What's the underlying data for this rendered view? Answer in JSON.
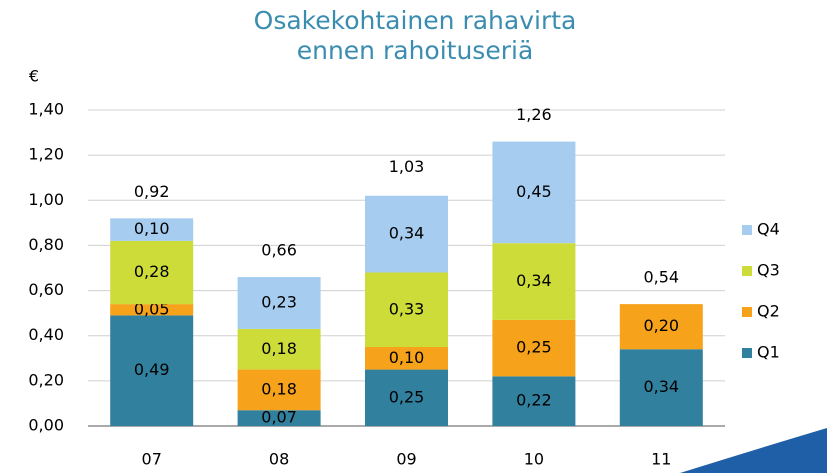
{
  "chart_data": {
    "type": "stacked_bar",
    "title": "Osakekohtainen rahavirta ennen rahoituseriä",
    "y_label": "€",
    "categories": [
      "07",
      "08",
      "09",
      "10",
      "11"
    ],
    "series": [
      {
        "name": "Q1",
        "color": "#31809e",
        "values": [
          0.49,
          0.07,
          0.25,
          0.22,
          0.34
        ],
        "value_labels": [
          "0,49",
          "0,07",
          "0,25",
          "0,22",
          "0,34"
        ]
      },
      {
        "name": "Q2",
        "color": "#f7a21b",
        "values": [
          0.05,
          0.18,
          0.1,
          0.25,
          0.2
        ],
        "value_labels": [
          "0,05",
          "0,18",
          "0,10",
          "0,25",
          "0,20"
        ]
      },
      {
        "name": "Q3",
        "color": "#cddc39",
        "values": [
          0.28,
          0.18,
          0.33,
          0.34,
          null
        ],
        "value_labels": [
          "0,28",
          "0,18",
          "0,33",
          "0,34",
          null
        ]
      },
      {
        "name": "Q4",
        "color": "#a6cdf0",
        "values": [
          0.1,
          0.23,
          0.34,
          0.45,
          null
        ],
        "value_labels": [
          "0,10",
          "0,23",
          "0,34",
          "0,45",
          null
        ]
      }
    ],
    "totals": [
      0.92,
      0.66,
      1.03,
      1.26,
      0.54
    ],
    "total_labels": [
      "0,92",
      "0,66",
      "1,03",
      "1,26",
      "0,54"
    ],
    "ylim": [
      0,
      1.4
    ],
    "yticks": [
      {
        "value": 0,
        "label": "0,00"
      },
      {
        "value": 0.2,
        "label": "0,20"
      },
      {
        "value": 0.4,
        "label": "0,40"
      },
      {
        "value": 0.6,
        "label": "0,60"
      },
      {
        "value": 0.8,
        "label": "0,80"
      },
      {
        "value": 1.0,
        "label": "1,00"
      },
      {
        "value": 1.2,
        "label": "1,20"
      },
      {
        "value": 1.4,
        "label": "1,40"
      }
    ],
    "grid": true,
    "legend": "right"
  }
}
